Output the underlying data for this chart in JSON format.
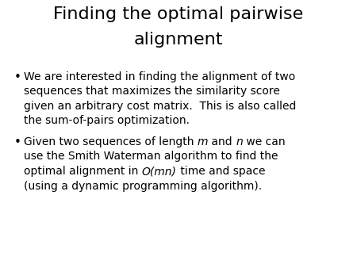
{
  "title_line1": "Finding the optimal pairwise",
  "title_line2": "alignment",
  "background_color": "#ffffff",
  "title_fontsize": 16,
  "title_color": "#000000",
  "bullet_fontsize": 10,
  "bullet_color": "#000000",
  "figsize": [
    4.5,
    3.38
  ],
  "dpi": 100,
  "bullet1_lines": [
    "We are interested in finding the alignment of two",
    "sequences that maximizes the similarity score",
    "given an arbitrary cost matrix.  This is also called",
    "the sum-of-pairs optimization."
  ],
  "bullet2_line1_parts": [
    {
      "text": "Given two sequences of length ",
      "italic": false
    },
    {
      "text": "m",
      "italic": true
    },
    {
      "text": " and ",
      "italic": false
    },
    {
      "text": "n",
      "italic": true
    },
    {
      "text": " we can",
      "italic": false
    }
  ],
  "bullet2_line2": "use the Smith Waterman algorithm to find the",
  "bullet2_line3_parts": [
    {
      "text": "optimal alignment in ",
      "italic": false
    },
    {
      "text": "O(mn)",
      "italic": true
    },
    {
      "text": " time and space",
      "italic": false
    }
  ],
  "bullet2_line4": "(using a dynamic programming algorithm)."
}
